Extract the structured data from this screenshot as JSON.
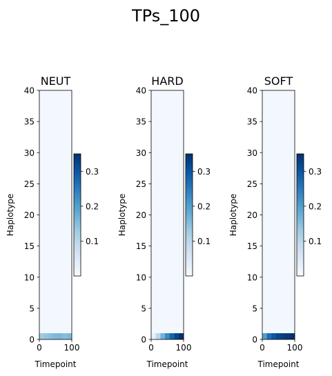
{
  "figure": {
    "title": "TPs_100"
  },
  "chart_data": [
    {
      "type": "heatmap",
      "title": "NEUT",
      "xlabel": "Timepoint",
      "ylabel": "Haplotype",
      "xlim": [
        0,
        100
      ],
      "ylim": [
        0,
        40
      ],
      "x_ticks": [
        0,
        100
      ],
      "y_ticks": [
        0,
        5,
        10,
        15,
        20,
        25,
        30,
        35,
        40
      ],
      "colormap": "Blues",
      "colorbar": {
        "min": 0.0,
        "max": 0.35,
        "ticks": [
          0.1,
          0.2,
          0.3
        ]
      },
      "background_value": 0.008,
      "highlighted_row": {
        "haplotype": 0,
        "values_start_to_end": [
          0.13,
          0.14,
          0.15,
          0.16,
          0.16,
          0.15,
          0.16
        ]
      }
    },
    {
      "type": "heatmap",
      "title": "HARD",
      "xlabel": "Timepoint",
      "ylabel": "Haplotype",
      "xlim": [
        0,
        100
      ],
      "ylim": [
        0,
        40
      ],
      "x_ticks": [
        0,
        100
      ],
      "y_ticks": [
        0,
        5,
        10,
        15,
        20,
        25,
        30,
        35,
        40
      ],
      "colormap": "Blues",
      "colorbar": {
        "min": 0.0,
        "max": 0.35,
        "ticks": [
          0.1,
          0.2,
          0.3
        ]
      },
      "background_value": 0.008,
      "highlighted_row": {
        "haplotype": 0,
        "values_start_to_end": [
          0.03,
          0.1,
          0.17,
          0.23,
          0.28,
          0.32,
          0.35
        ]
      }
    },
    {
      "type": "heatmap",
      "title": "SOFT",
      "xlabel": "Timepoint",
      "ylabel": "Haplotype",
      "xlim": [
        0,
        100
      ],
      "ylim": [
        0,
        40
      ],
      "x_ticks": [
        0,
        100
      ],
      "y_ticks": [
        0,
        5,
        10,
        15,
        20,
        25,
        30,
        35,
        40
      ],
      "colormap": "Blues",
      "colorbar": {
        "min": 0.0,
        "max": 0.35,
        "ticks": [
          0.1,
          0.2,
          0.3
        ]
      },
      "background_value": 0.008,
      "highlighted_row": {
        "haplotype": 0,
        "values_start_to_end": [
          0.2,
          0.27,
          0.3,
          0.32,
          0.33,
          0.34,
          0.35
        ]
      }
    }
  ]
}
